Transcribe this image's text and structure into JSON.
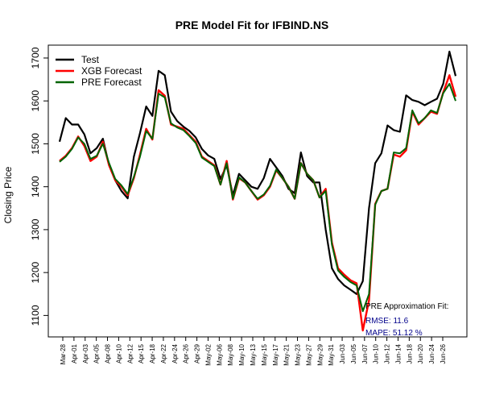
{
  "chart_data": {
    "type": "line",
    "title": "PRE Model Fit for IFBIND.NS",
    "xlabel": "",
    "ylabel": "Closing Price",
    "ylim": [
      1050,
      1730
    ],
    "yticks": [
      1100,
      1200,
      1300,
      1400,
      1500,
      1600,
      1700
    ],
    "xtick_labels": [
      "Mar-28",
      "Apr-01",
      "Apr-03",
      "Apr-05",
      "Apr-08",
      "Apr-10",
      "Apr-12",
      "Apr-15",
      "Apr-18",
      "Apr-22",
      "Apr-24",
      "Apr-26",
      "Apr-29",
      "May-02",
      "May-06",
      "May-08",
      "May-10",
      "May-13",
      "May-15",
      "May-17",
      "May-21",
      "May-23",
      "May-27",
      "May-29",
      "May-31",
      "Jun-03",
      "Jun-05",
      "Jun-07",
      "Jun-10",
      "Jun-12",
      "Jun-14",
      "Jun-18",
      "Jun-20",
      "Jun-24",
      "Jun-26"
    ],
    "legend": {
      "position": "top-left",
      "entries": [
        "Test",
        "XGB Forecast",
        "PRE Forecast"
      ]
    },
    "series": [
      {
        "name": "Test",
        "color": "#000000",
        "values": [
          1505,
          1560,
          1545,
          1545,
          1522,
          1478,
          1490,
          1512,
          1450,
          1415,
          1390,
          1373,
          1470,
          1525,
          1587,
          1565,
          1670,
          1660,
          1575,
          1553,
          1540,
          1530,
          1515,
          1488,
          1473,
          1465,
          1418,
          1450,
          1380,
          1430,
          1415,
          1400,
          1395,
          1420,
          1465,
          1445,
          1425,
          1395,
          1385,
          1480,
          1425,
          1410,
          1410,
          1300,
          1210,
          1185,
          1170,
          1160,
          1150,
          1180,
          1350,
          1455,
          1478,
          1543,
          1532,
          1528,
          1613,
          1602,
          1598,
          1590,
          1598,
          1605,
          1640,
          1715,
          1658
        ]
      },
      {
        "name": "XGB Forecast",
        "color": "#ff0000",
        "values": [
          1460,
          1472,
          1490,
          1517,
          1495,
          1460,
          1470,
          1505,
          1450,
          1415,
          1400,
          1380,
          1420,
          1475,
          1535,
          1510,
          1625,
          1612,
          1545,
          1540,
          1535,
          1520,
          1505,
          1470,
          1460,
          1450,
          1405,
          1460,
          1370,
          1420,
          1410,
          1390,
          1370,
          1380,
          1400,
          1438,
          1420,
          1400,
          1372,
          1455,
          1430,
          1415,
          1375,
          1395,
          1270,
          1210,
          1195,
          1182,
          1175,
          1065,
          1135,
          1360,
          1390,
          1395,
          1475,
          1470,
          1485,
          1575,
          1545,
          1560,
          1575,
          1570,
          1620,
          1660,
          1610
        ]
      },
      {
        "name": "PRE Forecast",
        "color": "#006400",
        "values": [
          1458,
          1470,
          1488,
          1515,
          1500,
          1465,
          1472,
          1500,
          1455,
          1418,
          1403,
          1383,
          1423,
          1470,
          1530,
          1512,
          1617,
          1608,
          1548,
          1538,
          1532,
          1518,
          1502,
          1468,
          1458,
          1448,
          1405,
          1455,
          1372,
          1422,
          1410,
          1390,
          1372,
          1382,
          1402,
          1440,
          1420,
          1400,
          1372,
          1455,
          1430,
          1415,
          1375,
          1390,
          1265,
          1205,
          1190,
          1178,
          1170,
          1110,
          1150,
          1358,
          1390,
          1395,
          1480,
          1478,
          1490,
          1578,
          1548,
          1560,
          1578,
          1572,
          1618,
          1640,
          1600
        ]
      }
    ],
    "annotations": {
      "heading": "PRE Approximation Fit:",
      "rmse": "RMSE: 11.6",
      "mape": "MAPE: 51.12 %",
      "metric_color": "#00008b"
    }
  }
}
